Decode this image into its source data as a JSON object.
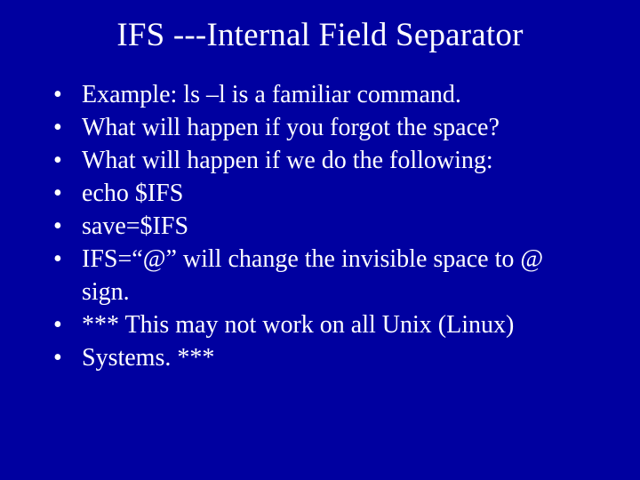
{
  "slide": {
    "background_color": "#0000a0",
    "text_color": "#ffffff",
    "font_family": "Times New Roman",
    "title": {
      "text": "IFS ---Internal Field Separator",
      "fontsize": 37,
      "align": "center"
    },
    "bullets": {
      "fontsize": 28,
      "line_height": 1.32,
      "marker": "•",
      "items": [
        "Example: ls –l  is a familiar command.",
        "What will happen if you forgot the space?",
        "What will happen if we do the following:",
        "echo $IFS",
        "save=$IFS",
        "IFS=“@” will change the invisible space to @ sign.",
        "*** This may not work on all Unix (Linux)",
        "Systems. ***"
      ]
    }
  }
}
